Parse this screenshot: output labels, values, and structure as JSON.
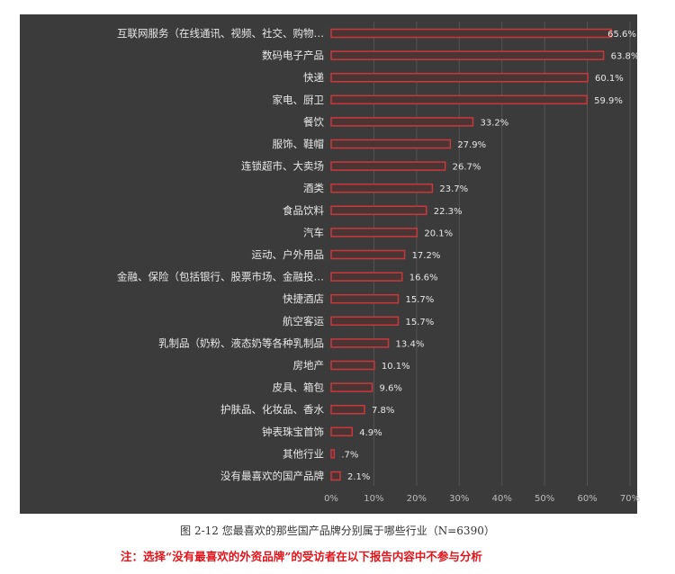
{
  "chart_data": {
    "type": "bar",
    "orientation": "horizontal",
    "categories": [
      "互联网服务（在线通讯、视频、社交、购物…",
      "数码电子产品",
      "快递",
      "家电、厨卫",
      "餐饮",
      "服饰、鞋帽",
      "连锁超市、大卖场",
      "酒类",
      "食品饮料",
      "汽车",
      "运动、户外用品",
      "金融、保险（包括银行、股票市场、金融投…",
      "快捷酒店",
      "航空客运",
      "乳制品（奶粉、液态奶等各种乳制品",
      "房地产",
      "皮具、箱包",
      "护肤品、化妆品、香水",
      "钟表珠宝首饰",
      "其他行业",
      "没有最喜欢的国产品牌"
    ],
    "values": [
      65.6,
      63.8,
      60.1,
      59.9,
      33.2,
      27.9,
      26.7,
      23.7,
      22.3,
      20.1,
      17.2,
      16.6,
      15.7,
      15.7,
      13.4,
      10.1,
      9.6,
      7.8,
      4.9,
      0.7,
      2.1
    ],
    "data_labels": [
      "65.6%",
      "63.8%",
      "60.1%",
      "59.9%",
      "33.2%",
      "27.9%",
      "26.7%",
      "23.7%",
      "22.3%",
      "20.1%",
      "17.2%",
      "16.6%",
      "15.7%",
      "15.7%",
      "13.4%",
      "10.1%",
      "9.6%",
      "7.8%",
      "4.9%",
      ".7%",
      "2.1%"
    ],
    "xlim": [
      0,
      70
    ],
    "xticks": [
      "0%",
      "10%",
      "20%",
      "30%",
      "40%",
      "50%",
      "60%",
      "70%"
    ],
    "grid": "vertical",
    "colors": {
      "background": "#3b3b3b",
      "bar_stroke": "#c8393c",
      "bar_fill": "#4a3434",
      "text": "#e8e8e8",
      "grid": "#555555"
    }
  },
  "caption": "图 2-12 您最喜欢的那些国产品牌分别属于哪些行业（N=6390）",
  "note": "注：选择“没有最喜欢的外资品牌”的受访者在以下报告内容中不参与分析"
}
